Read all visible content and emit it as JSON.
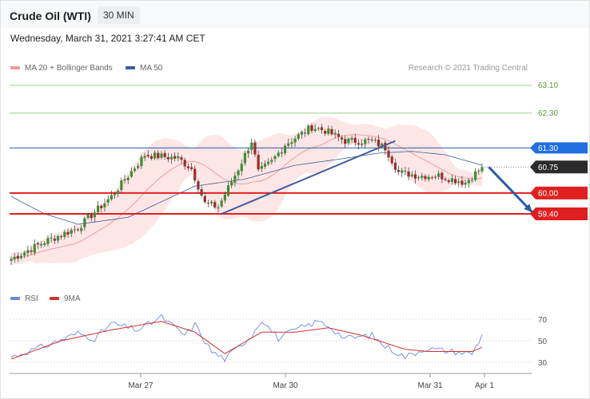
{
  "header": {
    "title": "Crude Oil (WTI)",
    "timeframe": "30 MIN"
  },
  "datetime": "Wednesday, March 31, 2021 3:27:41 AM CET",
  "legend": {
    "ma20": "MA 20 + Bollinger Bands",
    "ma50": "MA 50",
    "rsi": "RSI",
    "ma9": "9MA"
  },
  "credit": "Research © 2021 Trading Central",
  "colors": {
    "bull": "#3d8f32",
    "bear": "#9b2c2c",
    "ma20": "#f0a0a0",
    "band": "#fde2e2",
    "ma50": "#3d5a99",
    "resistance": "#2a5ba8",
    "support": "#e02020",
    "projection": "#2a5ba8",
    "green_level": "#9cd08a",
    "rsi": "#6b8bd8",
    "rsi_ma": "#d83030"
  },
  "chart_data": [
    {
      "type": "candlestick",
      "x_ticks": [
        "Mar 27",
        "Mar 30",
        "Mar 31",
        "Apr 1"
      ],
      "ylim": [
        57.0,
        63.5
      ],
      "price_levels": [
        {
          "value": 63.1,
          "label": "63.10",
          "kind": "target"
        },
        {
          "value": 62.3,
          "label": "62.30",
          "kind": "target"
        },
        {
          "value": 61.3,
          "label": "61.30",
          "kind": "resistance"
        },
        {
          "value": 60.75,
          "label": "60.75",
          "kind": "last"
        },
        {
          "value": 60.0,
          "label": "60.00",
          "kind": "support"
        },
        {
          "value": 59.4,
          "label": "59.40",
          "kind": "support"
        }
      ],
      "last_price": 60.75,
      "projection_target": 59.4,
      "close_path": [
        {
          "i": 0,
          "v": 58.1
        },
        {
          "i": 10,
          "v": 58.6
        },
        {
          "i": 20,
          "v": 59.0
        },
        {
          "i": 30,
          "v": 59.9
        },
        {
          "i": 40,
          "v": 61.1
        },
        {
          "i": 50,
          "v": 61.0
        },
        {
          "i": 54,
          "v": 60.7
        },
        {
          "i": 58,
          "v": 59.7
        },
        {
          "i": 62,
          "v": 59.6
        },
        {
          "i": 68,
          "v": 60.7
        },
        {
          "i": 72,
          "v": 61.5
        },
        {
          "i": 74,
          "v": 60.6
        },
        {
          "i": 78,
          "v": 60.9
        },
        {
          "i": 82,
          "v": 61.4
        },
        {
          "i": 90,
          "v": 61.9
        },
        {
          "i": 94,
          "v": 61.8
        },
        {
          "i": 100,
          "v": 61.5
        },
        {
          "i": 108,
          "v": 61.5
        },
        {
          "i": 112,
          "v": 61.3
        },
        {
          "i": 116,
          "v": 60.6
        },
        {
          "i": 122,
          "v": 60.5
        },
        {
          "i": 128,
          "v": 60.5
        },
        {
          "i": 136,
          "v": 60.3
        },
        {
          "i": 141,
          "v": 60.75
        }
      ],
      "ma50_path": [
        {
          "i": 0,
          "v": 59.9
        },
        {
          "i": 10,
          "v": 59.4
        },
        {
          "i": 20,
          "v": 59.1
        },
        {
          "i": 35,
          "v": 59.3
        },
        {
          "i": 55,
          "v": 60.2
        },
        {
          "i": 70,
          "v": 60.4
        },
        {
          "i": 85,
          "v": 60.8
        },
        {
          "i": 100,
          "v": 61.0
        },
        {
          "i": 110,
          "v": 61.15
        },
        {
          "i": 120,
          "v": 61.2
        },
        {
          "i": 130,
          "v": 61.1
        },
        {
          "i": 141,
          "v": 60.8
        }
      ],
      "trendlines": [
        {
          "name": "rising",
          "from": {
            "i": 63,
            "v": 59.4
          },
          "to": {
            "i": 115,
            "v": 61.5
          }
        },
        {
          "name": "projection",
          "from": {
            "i": 143,
            "v": 60.75
          },
          "to": {
            "i": 156,
            "v": 59.45
          }
        }
      ]
    },
    {
      "type": "line",
      "title": "RSI",
      "ylim": [
        20,
        80
      ],
      "y_ticks": [
        70,
        50,
        30
      ],
      "series": [
        {
          "name": "RSI",
          "points": [
            {
              "i": 0,
              "v": 35
            },
            {
              "i": 10,
              "v": 45
            },
            {
              "i": 20,
              "v": 57
            },
            {
              "i": 25,
              "v": 52
            },
            {
              "i": 30,
              "v": 66
            },
            {
              "i": 38,
              "v": 60
            },
            {
              "i": 45,
              "v": 72
            },
            {
              "i": 52,
              "v": 55
            },
            {
              "i": 55,
              "v": 65
            },
            {
              "i": 60,
              "v": 40
            },
            {
              "i": 64,
              "v": 33
            },
            {
              "i": 72,
              "v": 55
            },
            {
              "i": 75,
              "v": 70
            },
            {
              "i": 80,
              "v": 52
            },
            {
              "i": 85,
              "v": 60
            },
            {
              "i": 92,
              "v": 68
            },
            {
              "i": 95,
              "v": 64
            },
            {
              "i": 100,
              "v": 52
            },
            {
              "i": 108,
              "v": 55
            },
            {
              "i": 112,
              "v": 45
            },
            {
              "i": 118,
              "v": 35
            },
            {
              "i": 124,
              "v": 43
            },
            {
              "i": 132,
              "v": 40
            },
            {
              "i": 138,
              "v": 38
            },
            {
              "i": 141,
              "v": 55
            }
          ]
        },
        {
          "name": "9MA",
          "points": [
            {
              "i": 0,
              "v": 33
            },
            {
              "i": 15,
              "v": 50
            },
            {
              "i": 30,
              "v": 60
            },
            {
              "i": 45,
              "v": 68
            },
            {
              "i": 55,
              "v": 58
            },
            {
              "i": 64,
              "v": 38
            },
            {
              "i": 75,
              "v": 58
            },
            {
              "i": 85,
              "v": 58
            },
            {
              "i": 95,
              "v": 62
            },
            {
              "i": 105,
              "v": 55
            },
            {
              "i": 118,
              "v": 42
            },
            {
              "i": 125,
              "v": 40
            },
            {
              "i": 138,
              "v": 40
            },
            {
              "i": 141,
              "v": 44
            }
          ]
        }
      ]
    }
  ]
}
